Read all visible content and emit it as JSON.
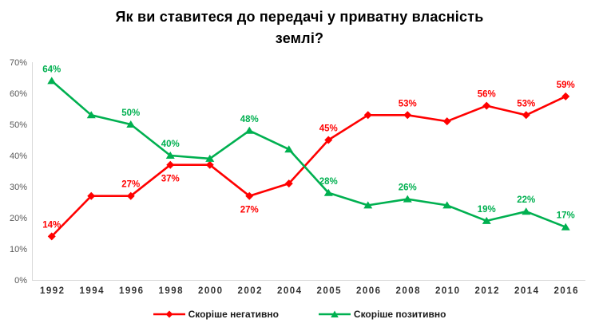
{
  "title": {
    "line1": "Як ви ставитеся до передачі у приватну власність",
    "line2": "землі?"
  },
  "chart_data": {
    "type": "line",
    "title": "Як ви ставитеся до передачі у приватну власність землі?",
    "categories": [
      "1992",
      "1994",
      "1996",
      "1998",
      "2000",
      "2002",
      "2004",
      "2005",
      "2006",
      "2008",
      "2010",
      "2012",
      "2014",
      "2016"
    ],
    "series": [
      {
        "name": "Скоріше негативно",
        "color": "#FF0000",
        "marker": "diamond",
        "values": [
          14,
          27,
          27,
          37,
          37,
          27,
          31,
          45,
          53,
          53,
          51,
          56,
          53,
          59
        ],
        "point_labels": [
          "14%",
          "",
          "27%",
          "37%",
          "",
          "27%",
          "",
          "45%",
          "",
          "53%",
          "",
          "56%",
          "53%",
          "59%"
        ],
        "label_placement": [
          "above",
          "",
          "above",
          "below",
          "",
          "below",
          "",
          "above",
          "",
          "above",
          "",
          "above",
          "above",
          "above"
        ]
      },
      {
        "name": "Скоріше позитивно",
        "color": "#00B050",
        "marker": "triangle",
        "values": [
          64,
          53,
          50,
          40,
          39,
          48,
          42,
          28,
          24,
          26,
          24,
          19,
          22,
          17
        ],
        "point_labels": [
          "64%",
          "",
          "50%",
          "40%",
          "",
          "48%",
          "",
          "28%",
          "",
          "26%",
          "",
          "19%",
          "22%",
          "17%"
        ],
        "label_placement": [
          "above",
          "",
          "above",
          "above",
          "",
          "above",
          "",
          "above",
          "",
          "above",
          "",
          "above",
          "above",
          "above"
        ]
      }
    ],
    "ylim": [
      0,
      70
    ],
    "ytick_step": 10,
    "ytick_labels": [
      "0%",
      "10%",
      "20%",
      "30%",
      "40%",
      "50%",
      "60%",
      "70%"
    ],
    "grid": false,
    "legend_position": "bottom",
    "colors": {
      "axis_line": "#D9D9D9",
      "ytick_label": "#595959",
      "xtick_label": "#333333",
      "title": "#000000",
      "background": "#FFFFFF"
    }
  }
}
